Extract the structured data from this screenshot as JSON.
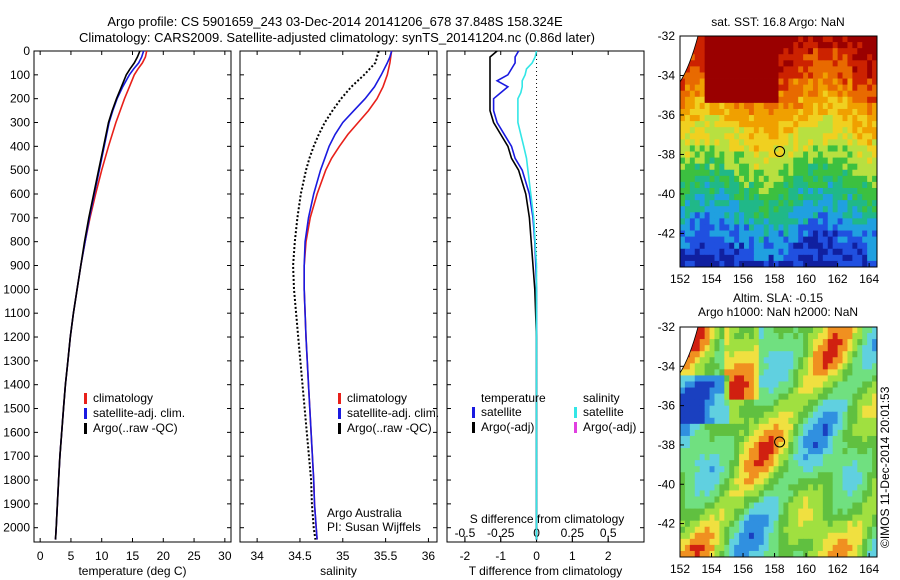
{
  "header": {
    "line1": "Argo profile: CS 5901659_243 03-Dec-2014 20141206_678 37.848S 158.324E",
    "line2": "Climatology: CARS2009. Satellite-adjusted climatology: synTS_20141204.nc (0.86d later)"
  },
  "colors": {
    "climatology": "#e8201a",
    "satellite": "#1a1ae0",
    "argo": "#000000",
    "sal_satellite": "#33e6e6",
    "sal_argo": "#e040e0"
  },
  "depth_axis": {
    "ticks": [
      0,
      100,
      200,
      300,
      400,
      500,
      600,
      700,
      800,
      900,
      1000,
      1100,
      1200,
      1300,
      1400,
      1500,
      1600,
      1700,
      1800,
      1900,
      2000
    ]
  },
  "chart_data": [
    {
      "type": "line",
      "id": "temperature",
      "xlabel": "temperature (deg C)",
      "xlim": [
        -1,
        31
      ],
      "ylim": [
        2060,
        0
      ],
      "xticks": [
        0,
        5,
        10,
        15,
        20,
        25,
        30
      ],
      "legend": [
        "climatology",
        "satellite-adj. clim.",
        "Argo(..raw -QC)"
      ],
      "depth": [
        0,
        25,
        50,
        75,
        100,
        150,
        200,
        250,
        300,
        400,
        500,
        600,
        700,
        800,
        900,
        1000,
        1100,
        1200,
        1300,
        1400,
        1500,
        1600,
        1700,
        1800,
        1900,
        2000,
        2050
      ],
      "series": [
        {
          "name": "climatology",
          "values": [
            17.3,
            17.1,
            16.6,
            15.9,
            15.3,
            14.5,
            13.7,
            13.0,
            12.3,
            11.1,
            10.0,
            9.0,
            8.1,
            7.3,
            6.6,
            6.0,
            5.4,
            4.9,
            4.5,
            4.1,
            3.8,
            3.5,
            3.2,
            3.0,
            2.8,
            2.6,
            2.5
          ]
        },
        {
          "name": "satellite-adj. clim.",
          "values": [
            16.8,
            16.5,
            16.0,
            15.2,
            14.5,
            13.4,
            12.5,
            11.8,
            11.2,
            10.4,
            9.6,
            8.8,
            8.0,
            7.3,
            6.6,
            6.0,
            5.4,
            4.9,
            4.5,
            4.1,
            3.8,
            3.5,
            3.2,
            3.0,
            2.8,
            2.6,
            2.5
          ]
        },
        {
          "name": "Argo(..raw -QC)",
          "values": [
            16.2,
            15.8,
            15.3,
            14.6,
            14.0,
            13.2,
            12.4,
            11.7,
            11.1,
            10.3,
            9.5,
            8.7,
            7.9,
            7.2,
            6.6,
            6.0,
            5.4,
            4.9,
            4.5,
            4.1,
            3.8,
            3.5,
            3.2,
            3.0,
            2.8,
            2.6,
            2.5
          ]
        }
      ]
    },
    {
      "type": "line",
      "id": "salinity",
      "xlabel": "salinity",
      "xlim": [
        33.8,
        36.1
      ],
      "ylim": [
        2060,
        0
      ],
      "xticks": [
        34,
        34.5,
        35,
        35.5,
        36
      ],
      "xticklabels": [
        "34",
        "34.5",
        "35",
        "35.5",
        "36"
      ],
      "legend": [
        "climatology",
        "satellite-adj. clim.",
        "Argo(..raw -QC)"
      ],
      "annotation": [
        "Argo Australia",
        "PI: Susan Wijffels"
      ],
      "depth": [
        0,
        25,
        50,
        100,
        150,
        200,
        250,
        300,
        350,
        400,
        450,
        500,
        600,
        700,
        800,
        900,
        1000,
        1200,
        1400,
        1600,
        1800,
        1900,
        2000,
        2050
      ],
      "series": [
        {
          "name": "climatology",
          "values": [
            35.57,
            35.56,
            35.55,
            35.52,
            35.47,
            35.4,
            35.3,
            35.18,
            35.06,
            34.96,
            34.87,
            34.8,
            34.7,
            34.62,
            34.57,
            34.55,
            34.55,
            34.57,
            34.6,
            34.63,
            34.66,
            34.67,
            34.69,
            34.7
          ]
        },
        {
          "name": "satellite-adj. clim.",
          "values": [
            35.57,
            35.55,
            35.52,
            35.45,
            35.37,
            35.26,
            35.13,
            35.0,
            34.91,
            34.84,
            34.79,
            34.74,
            34.66,
            34.6,
            34.56,
            34.55,
            34.55,
            34.57,
            34.6,
            34.63,
            34.66,
            34.67,
            34.69,
            34.7
          ]
        },
        {
          "name": "Argo(..raw -QC)",
          "values": [
            35.42,
            35.4,
            35.38,
            35.25,
            35.1,
            34.98,
            34.88,
            34.79,
            34.72,
            34.66,
            34.61,
            34.57,
            34.51,
            34.47,
            34.44,
            34.42,
            34.43,
            34.48,
            34.53,
            34.58,
            34.63,
            34.64,
            34.66,
            34.68
          ]
        }
      ]
    },
    {
      "type": "line",
      "id": "differences",
      "xlabel": "T difference from climatology",
      "xlabel2": "S difference from climatology",
      "xlim": [
        -2.5,
        3.0
      ],
      "ylim": [
        2060,
        0
      ],
      "xticks": [
        -2,
        -1,
        0,
        1,
        2
      ],
      "s_ticks": [
        -0.5,
        -0.25,
        0,
        0.25,
        0.5
      ],
      "s_ticklabels": [
        "-0.5",
        "-0.25",
        "0",
        "0.25",
        "0.5"
      ],
      "legend_temperature_title": "temperature",
      "legend_salinity_title": "salinity",
      "legend": [
        "satellite",
        "Argo(-adj)",
        "satellite",
        "Argo(-adj)"
      ],
      "depth": [
        0,
        25,
        50,
        75,
        100,
        125,
        150,
        175,
        200,
        250,
        300,
        350,
        400,
        450,
        500,
        600,
        700,
        800,
        900,
        1000,
        1200,
        1400,
        1600,
        1800,
        2000,
        2050
      ],
      "series": [
        {
          "name": "satellite",
          "values": [
            -0.5,
            -0.6,
            -0.6,
            -0.7,
            -0.8,
            -1.1,
            -0.8,
            -1.0,
            -1.2,
            -1.2,
            -1.1,
            -0.9,
            -0.7,
            -0.6,
            -0.4,
            -0.2,
            -0.1,
            -0.05,
            -0.02,
            0,
            0,
            0,
            0,
            0,
            0,
            0
          ]
        },
        {
          "name": "Argo(-adj)",
          "values": [
            -1.1,
            -1.3,
            -1.3,
            -1.3,
            -1.3,
            -1.3,
            -1.3,
            -1.3,
            -1.3,
            -1.3,
            -1.2,
            -1.0,
            -0.8,
            -0.7,
            -0.5,
            -0.3,
            -0.2,
            -0.15,
            -0.1,
            -0.05,
            0,
            0,
            0,
            0,
            0,
            0
          ]
        },
        {
          "name": "satellite (S)",
          "values": [
            0.0,
            -0.01,
            -0.03,
            -0.07,
            -0.08,
            -0.1,
            -0.1,
            -0.11,
            -0.13,
            -0.13,
            -0.13,
            -0.11,
            -0.09,
            -0.07,
            -0.06,
            -0.04,
            -0.02,
            -0.01,
            0,
            0,
            0,
            0,
            0,
            0,
            0,
            0
          ]
        }
      ]
    },
    {
      "type": "heatmap",
      "id": "sst",
      "title": "sat. SST: 16.8  Argo: NaN",
      "xlim": [
        152,
        164.5
      ],
      "ylim": [
        -43.7,
        -32
      ],
      "xticks": [
        152,
        154,
        156,
        158,
        160,
        162,
        164
      ],
      "yticks": [
        -32,
        -34,
        -36,
        -38,
        -40,
        -42
      ],
      "marker": {
        "lon": 158.32,
        "lat": -37.85
      }
    },
    {
      "type": "heatmap",
      "id": "sla",
      "title": "Altim. SLA: -0.15",
      "subtitle": "Argo h1000: NaN h2000: NaN",
      "xlim": [
        152,
        164.5
      ],
      "ylim": [
        -43.7,
        -32
      ],
      "xticks": [
        152,
        154,
        156,
        158,
        160,
        162,
        164
      ],
      "yticks": [
        -32,
        -34,
        -36,
        -38,
        -40,
        -42
      ],
      "marker": {
        "lon": 158.32,
        "lat": -37.85
      }
    }
  ],
  "footer": {
    "credit": "©IMOS 11-Dec-2014 20:01:53"
  }
}
